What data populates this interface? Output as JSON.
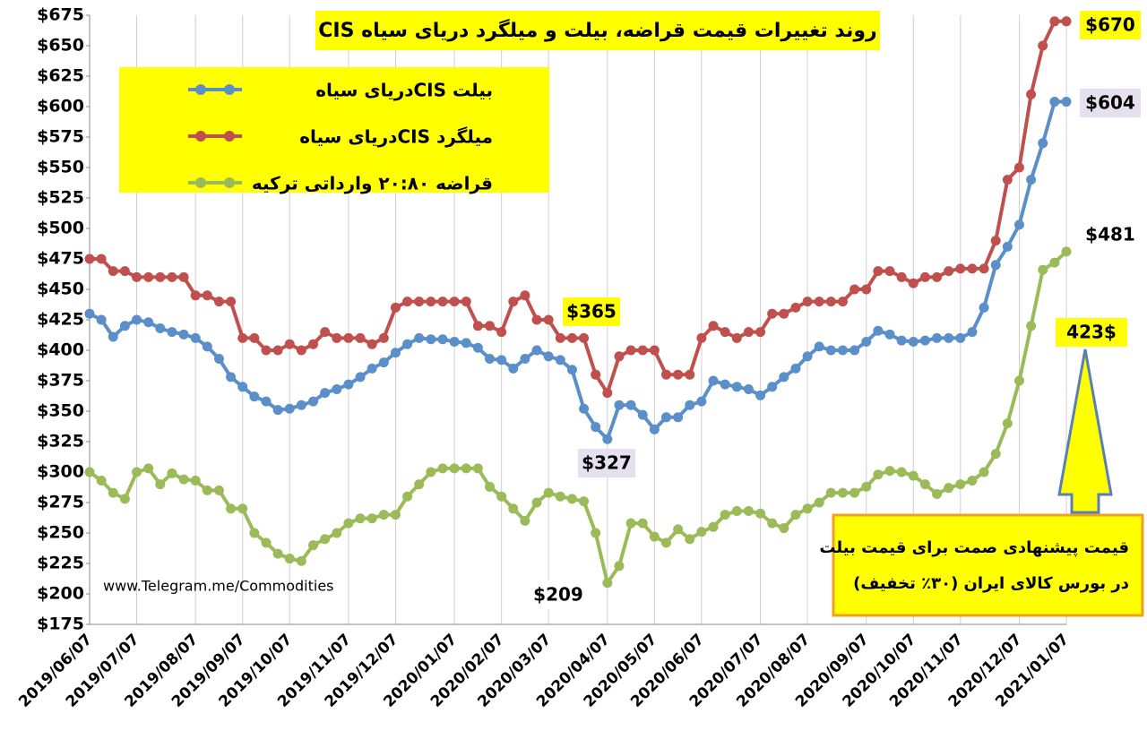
{
  "chart_data": {
    "type": "line",
    "title": "روند تغییرات قیمت قراضه، بیلت و میلگرد دریای سیاه CIS",
    "categories": [
      "2019/06/07",
      null,
      null,
      null,
      "2019/07/07",
      null,
      null,
      null,
      null,
      "2019/08/07",
      null,
      null,
      null,
      "2019/09/07",
      null,
      null,
      null,
      "2019/10/07",
      null,
      null,
      null,
      null,
      "2019/11/07",
      null,
      null,
      null,
      "2019/12/07",
      null,
      null,
      null,
      null,
      "2020/01/07",
      null,
      null,
      null,
      "2020/02/07",
      null,
      null,
      null,
      "2020/03/07",
      null,
      null,
      null,
      null,
      "2020/04/07",
      null,
      null,
      null,
      "2020/05/07",
      null,
      null,
      null,
      "2020/06/07",
      null,
      null,
      null,
      null,
      "2020/07/07",
      null,
      null,
      null,
      "2020/08/07",
      null,
      null,
      null,
      null,
      "2020/09/07",
      null,
      null,
      null,
      "2020/10/07",
      null,
      null,
      null,
      "2020/11/07",
      null,
      null,
      null,
      null,
      "2020/12/07",
      null,
      null,
      null,
      "2021/01/07"
    ],
    "series": [
      {
        "name": "بیلت  CISدریای سیاه",
        "color": "#5b8fc9",
        "values": [
          430,
          425,
          411,
          420,
          425,
          423,
          418,
          415,
          413,
          410,
          403,
          393,
          378,
          370,
          362,
          358,
          351,
          352,
          355,
          358,
          365,
          368,
          372,
          378,
          385,
          390,
          398,
          405,
          410,
          409,
          409,
          407,
          406,
          402,
          393,
          392,
          385,
          393,
          400,
          395,
          392,
          384,
          352,
          337,
          327,
          355,
          355,
          347,
          335,
          345,
          345,
          355,
          358,
          375,
          372,
          370,
          368,
          363,
          370,
          378,
          385,
          395,
          403,
          400,
          400,
          400,
          407,
          416,
          413,
          408,
          407,
          408,
          410,
          410,
          410,
          415,
          435,
          470,
          485,
          503,
          540,
          570,
          604,
          604
        ]
      },
      {
        "name": "میلگرد  CISدریای سیاه",
        "color": "#c0504d",
        "values": [
          475,
          475,
          465,
          465,
          460,
          460,
          460,
          460,
          460,
          445,
          445,
          440,
          440,
          410,
          410,
          400,
          400,
          405,
          400,
          405,
          415,
          410,
          410,
          410,
          405,
          410,
          435,
          440,
          440,
          440,
          440,
          440,
          440,
          420,
          420,
          415,
          440,
          445,
          425,
          425,
          410,
          410,
          410,
          380,
          365,
          395,
          400,
          400,
          400,
          380,
          380,
          380,
          410,
          420,
          415,
          410,
          415,
          415,
          430,
          430,
          435,
          440,
          440,
          440,
          440,
          450,
          450,
          465,
          465,
          460,
          455,
          460,
          460,
          465,
          467,
          467,
          467,
          490,
          540,
          550,
          610,
          650,
          670,
          670
        ]
      },
      {
        "name": "قراضه ۲۰:۸۰ وارداتی ترکیه",
        "color": "#9bbb59",
        "values": [
          300,
          293,
          283,
          278,
          300,
          303,
          290,
          299,
          294,
          293,
          285,
          285,
          270,
          270,
          250,
          242,
          233,
          229,
          227,
          240,
          245,
          250,
          258,
          262,
          262,
          265,
          265,
          280,
          290,
          300,
          303,
          303,
          303,
          303,
          288,
          280,
          270,
          260,
          275,
          283,
          280,
          278,
          276,
          250,
          209,
          223,
          258,
          258,
          247,
          242,
          253,
          245,
          251,
          255,
          265,
          268,
          268,
          266,
          258,
          254,
          265,
          270,
          275,
          283,
          283,
          283,
          288,
          298,
          301,
          300,
          297,
          290,
          282,
          287,
          290,
          293,
          300,
          315,
          340,
          375,
          420,
          466,
          472,
          481
        ]
      }
    ],
    "ylim": [
      175,
      675
    ],
    "yticks": [
      {
        "value": 175,
        "label": "$175"
      },
      {
        "value": 200,
        "label": "$200"
      },
      {
        "value": 225,
        "label": "$225"
      },
      {
        "value": 250,
        "label": "$250"
      },
      {
        "value": 275,
        "label": "$275"
      },
      {
        "value": 300,
        "label": "$300"
      },
      {
        "value": 325,
        "label": "$325"
      },
      {
        "value": 350,
        "label": "$350"
      },
      {
        "value": 375,
        "label": "$375"
      },
      {
        "value": 400,
        "label": "$400"
      },
      {
        "value": 425,
        "label": "$425"
      },
      {
        "value": 450,
        "label": "$450"
      },
      {
        "value": 475,
        "label": "$475"
      },
      {
        "value": 500,
        "label": "$500"
      },
      {
        "value": 525,
        "label": "$525"
      },
      {
        "value": 550,
        "label": "$550"
      },
      {
        "value": 575,
        "label": "$575"
      },
      {
        "value": 600,
        "label": "$600"
      },
      {
        "value": 625,
        "label": "$625"
      },
      {
        "value": 650,
        "label": "$650"
      },
      {
        "value": 675,
        "label": "$675"
      }
    ],
    "grid": true,
    "annotations": [
      "$670",
      "$604",
      "$481",
      "$365",
      "$327",
      "$209",
      "423$"
    ],
    "source": "www.Telegram.me/Commodities",
    "note": [
      "قیمت پیشنهادی صمت برای قیمت بیلت",
      "در بورس کالای ایران (۳۰٪ تخفیف)"
    ]
  }
}
